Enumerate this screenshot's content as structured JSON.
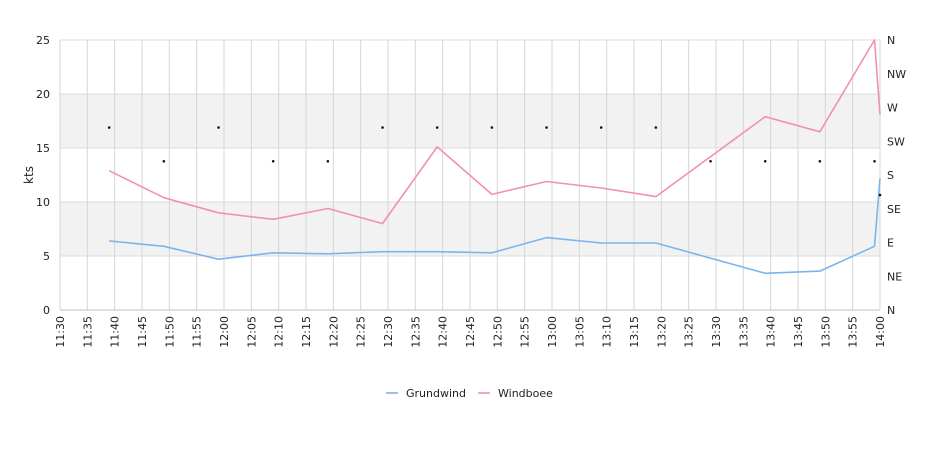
{
  "chart_data": {
    "type": "line",
    "ylabel": "kts",
    "ylim": [
      0,
      25
    ],
    "y_ticks": [
      0,
      5,
      10,
      15,
      20,
      25
    ],
    "x_tick_labels": [
      "11:30",
      "11:35",
      "11:40",
      "11:45",
      "11:50",
      "11:55",
      "12:00",
      "12:05",
      "12:10",
      "12:15",
      "12:20",
      "12:25",
      "12:30",
      "12:35",
      "12:40",
      "12:45",
      "12:50",
      "12:55",
      "13:00",
      "13:05",
      "13:10",
      "13:15",
      "13:20",
      "13:25",
      "13:30",
      "13:35",
      "13:40",
      "13:45",
      "13:50",
      "13:55",
      "14:00"
    ],
    "direction_axis_labels": [
      "N",
      "NE",
      "E",
      "SE",
      "S",
      "SW",
      "W",
      "NW",
      "N"
    ],
    "grid": true,
    "alternating_bands": true,
    "legend_position": "bottom-center",
    "series": [
      {
        "name": "Grundwind",
        "color": "#7cb5ec",
        "x": [
          "11:39",
          "11:49",
          "11:59",
          "12:09",
          "12:19",
          "12:29",
          "12:39",
          "12:49",
          "12:59",
          "13:09",
          "13:19",
          "13:39",
          "13:49",
          "13:59",
          "14:00"
        ],
        "values": [
          6.4,
          5.9,
          4.7,
          5.3,
          5.2,
          5.4,
          5.4,
          5.3,
          6.7,
          6.2,
          6.2,
          3.4,
          3.6,
          5.9,
          12.2
        ]
      },
      {
        "name": "Windboee",
        "color": "#f28fb8",
        "x": [
          "11:39",
          "11:49",
          "11:59",
          "12:09",
          "12:19",
          "12:29",
          "12:39",
          "12:49",
          "12:59",
          "13:09",
          "13:19",
          "13:39",
          "13:49",
          "13:59",
          "14:00"
        ],
        "values": [
          12.9,
          10.4,
          9.0,
          8.4,
          9.4,
          8.0,
          15.1,
          10.7,
          11.9,
          11.3,
          10.5,
          17.9,
          16.5,
          25.0,
          18.1
        ]
      }
    ],
    "direction_markers": {
      "x": [
        "11:39",
        "11:49",
        "11:59",
        "12:09",
        "12:19",
        "12:29",
        "12:39",
        "12:49",
        "12:59",
        "13:09",
        "13:19",
        "13:29",
        "13:39",
        "13:49",
        "13:59",
        "14:00"
      ],
      "values": [
        "W",
        "SW",
        "W",
        "SW",
        "SW",
        "W",
        "W",
        "W",
        "W",
        "W",
        "W",
        "SW",
        "SW",
        "SW",
        "SW",
        "S"
      ]
    }
  }
}
